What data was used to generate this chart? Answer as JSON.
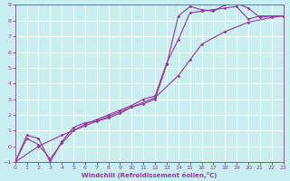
{
  "xlabel": "Windchill (Refroidissement éolien,°C)",
  "xlim": [
    0,
    23
  ],
  "ylim": [
    -1,
    9
  ],
  "xticks": [
    0,
    1,
    2,
    3,
    4,
    5,
    6,
    7,
    8,
    9,
    10,
    11,
    12,
    13,
    14,
    15,
    16,
    17,
    18,
    19,
    20,
    21,
    22,
    23
  ],
  "yticks": [
    -1,
    0,
    1,
    2,
    3,
    4,
    5,
    6,
    7,
    8,
    9
  ],
  "bg_color": "#c8eef0",
  "grid_color": "#b8dde0",
  "line_color": "#993399",
  "line1_x": [
    0,
    1,
    2,
    3,
    4,
    5,
    6,
    7,
    8,
    9,
    10,
    11,
    12,
    13,
    14,
    15,
    16,
    17,
    18,
    19,
    20,
    21,
    22,
    23
  ],
  "line1_y": [
    -1.0,
    0.7,
    0.5,
    -1.0,
    0.3,
    1.2,
    1.5,
    1.6,
    1.8,
    2.1,
    2.5,
    2.7,
    3.0,
    5.2,
    8.3,
    8.9,
    8.7,
    8.6,
    9.0,
    9.1,
    8.8,
    8.2,
    8.3,
    8.3
  ],
  "line2_x": [
    0,
    1,
    2,
    3,
    4,
    5,
    6,
    7,
    8,
    9,
    10,
    11,
    12,
    13,
    14,
    15,
    16,
    17,
    18,
    19,
    20,
    21,
    22,
    23
  ],
  "line2_y": [
    -1.0,
    0.5,
    0.1,
    -0.8,
    0.2,
    1.0,
    1.4,
    1.7,
    2.0,
    2.3,
    2.6,
    3.0,
    3.2,
    5.3,
    6.8,
    8.5,
    8.6,
    8.7,
    8.8,
    8.9,
    8.1,
    8.3,
    8.3,
    8.3
  ],
  "line3_x": [
    0,
    2,
    4,
    6,
    8,
    10,
    12,
    14,
    15,
    16,
    18,
    20,
    22,
    23
  ],
  "line3_y": [
    -1.0,
    0.0,
    0.7,
    1.3,
    1.9,
    2.5,
    3.1,
    4.5,
    5.5,
    6.5,
    7.3,
    7.9,
    8.2,
    8.3
  ]
}
